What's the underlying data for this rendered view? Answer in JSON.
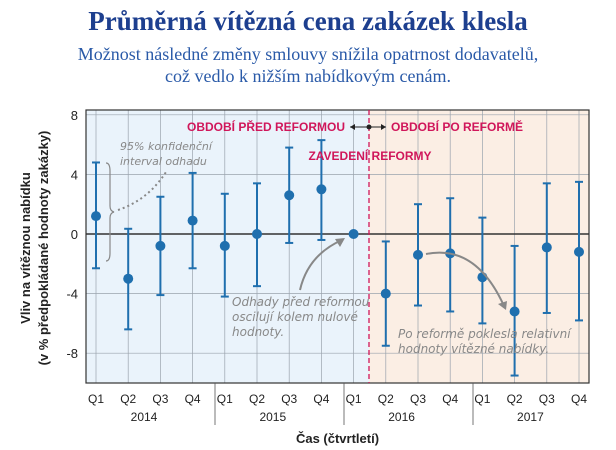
{
  "title": "Průměrná vítězná cena zakázek klesla",
  "subtitle_line1": "Možnost následné změny smlouvy snížila opatrnost dodavatelů,",
  "subtitle_line2": "což vedlo k nižším nabídkovým cenám.",
  "colors": {
    "point": "#1f6fae",
    "pre_bg": "#eaf3fb",
    "post_bg": "#fbeee4",
    "accent": "#d0165a",
    "annot": "#888888"
  },
  "chart_data": {
    "type": "scatter",
    "title": "Průměrná vítězná cena zakázek klesla",
    "xlabel": "Čas (čtvrtletí)",
    "ylabel_line1": "Vliv na vítěznou nabídku",
    "ylabel_line2": "(v % předpokládané hodnoty zakázky)",
    "ylim": [
      -10,
      8.3
    ],
    "yticks": [
      "8",
      "4",
      "0",
      "-4",
      "-8"
    ],
    "ytick_values": [
      8,
      4,
      0,
      -4,
      -8
    ],
    "quarters": [
      "Q1",
      "Q2",
      "Q3",
      "Q4",
      "Q1",
      "Q2",
      "Q3",
      "Q4",
      "Q1",
      "Q2",
      "Q3",
      "Q4",
      "Q1",
      "Q2",
      "Q3",
      "Q4"
    ],
    "years": [
      "2014",
      "2015",
      "2016",
      "2017"
    ],
    "values": [
      1.2,
      -3.0,
      -0.8,
      0.9,
      -0.8,
      0.0,
      2.6,
      3.0,
      0.0,
      -4.0,
      -1.4,
      -1.3,
      -2.9,
      -5.2,
      -0.9,
      -1.2
    ],
    "ci_upper": [
      4.8,
      0.35,
      2.5,
      4.1,
      2.7,
      3.4,
      5.8,
      6.3,
      null,
      -0.5,
      2.0,
      2.4,
      1.1,
      -0.8,
      3.4,
      3.5
    ],
    "ci_lower": [
      -2.3,
      -6.4,
      -4.1,
      -2.3,
      -4.2,
      -3.5,
      -0.6,
      -0.4,
      null,
      -7.5,
      -4.8,
      -5.2,
      -6.0,
      -9.5,
      -5.3,
      -5.8
    ],
    "annotations": {
      "pre": "OBDOBÍ PŘED REFORMOU",
      "post": "OBDOBÍ PO REFORMĚ",
      "reform": "ZAVEDENÍ REFORMY",
      "ci_1": "95% konfidenční",
      "ci_2": "interval odhadu",
      "pre_note_1": "Odhady před reformou",
      "pre_note_2": "oscilují kolem nulové",
      "pre_note_3": "hodnoty.",
      "post_note_1": "Po reformě poklesla relativní",
      "post_note_2": "hodnoty vítězné nabídky."
    }
  }
}
